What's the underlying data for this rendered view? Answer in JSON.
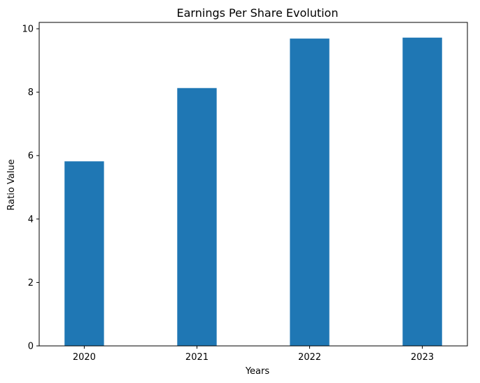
{
  "colors": {
    "bar": "#1f77b4",
    "axis": "#000000",
    "background": "#ffffff"
  },
  "chart_data": {
    "type": "bar",
    "title": "Earnings Per Share Evolution",
    "xlabel": "Years",
    "ylabel": "Ratio Value",
    "categories": [
      "2020",
      "2021",
      "2022",
      "2023"
    ],
    "values": [
      5.82,
      8.13,
      9.69,
      9.72
    ],
    "ylim": [
      0,
      10.2
    ],
    "yticks": [
      0,
      2,
      4,
      6,
      8,
      10
    ],
    "grid": false,
    "legend": "none"
  }
}
